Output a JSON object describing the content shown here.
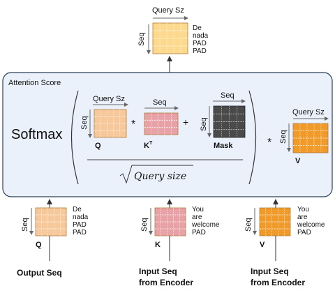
{
  "output": {
    "axis_query": "Query Sz",
    "axis_seq": "Seq",
    "tokens": [
      "De",
      "nada",
      "PAD",
      "PAD"
    ]
  },
  "attention": {
    "title": "Attention Score",
    "softmax": "Softmax",
    "q": {
      "axis_top": "Query Sz",
      "axis_left": "Seq",
      "label": "Q"
    },
    "k": {
      "axis_top": "Seq",
      "label": "K",
      "superscript": "T"
    },
    "mask": {
      "axis_top": "Seq",
      "axis_left": "Seq",
      "label": "Mask"
    },
    "v": {
      "axis_top": "Query Sz",
      "axis_left": "Seq",
      "label": "V"
    },
    "op_mul": "*",
    "op_add": "+",
    "op_mul2": "*",
    "denominator": "Query size"
  },
  "inputs": {
    "q": {
      "axis_left": "Seq",
      "label": "Q",
      "tokens": [
        "De",
        "nada",
        "PAD",
        "PAD"
      ],
      "caption": [
        "Output Seq"
      ]
    },
    "k": {
      "axis_left": "Seq",
      "label": "K",
      "tokens": [
        "You",
        "are",
        "welcome",
        "PAD"
      ],
      "caption": [
        "Input Seq",
        "from Encoder"
      ]
    },
    "v": {
      "axis_left": "Seq",
      "label": "V",
      "tokens": [
        "You",
        "are",
        "welcome",
        "PAD"
      ],
      "caption": [
        "Input Seq",
        "from Encoder"
      ]
    }
  },
  "colors": {
    "panel_fill": "#eaf1fb",
    "panel_stroke": "#2b3f57",
    "q_fill": "#f7c89a",
    "k_fill": "#e8a1a6",
    "mask_fill": "#4a4a4a",
    "v_fill": "#f09a2a",
    "out_fill": "#fcd98c"
  }
}
